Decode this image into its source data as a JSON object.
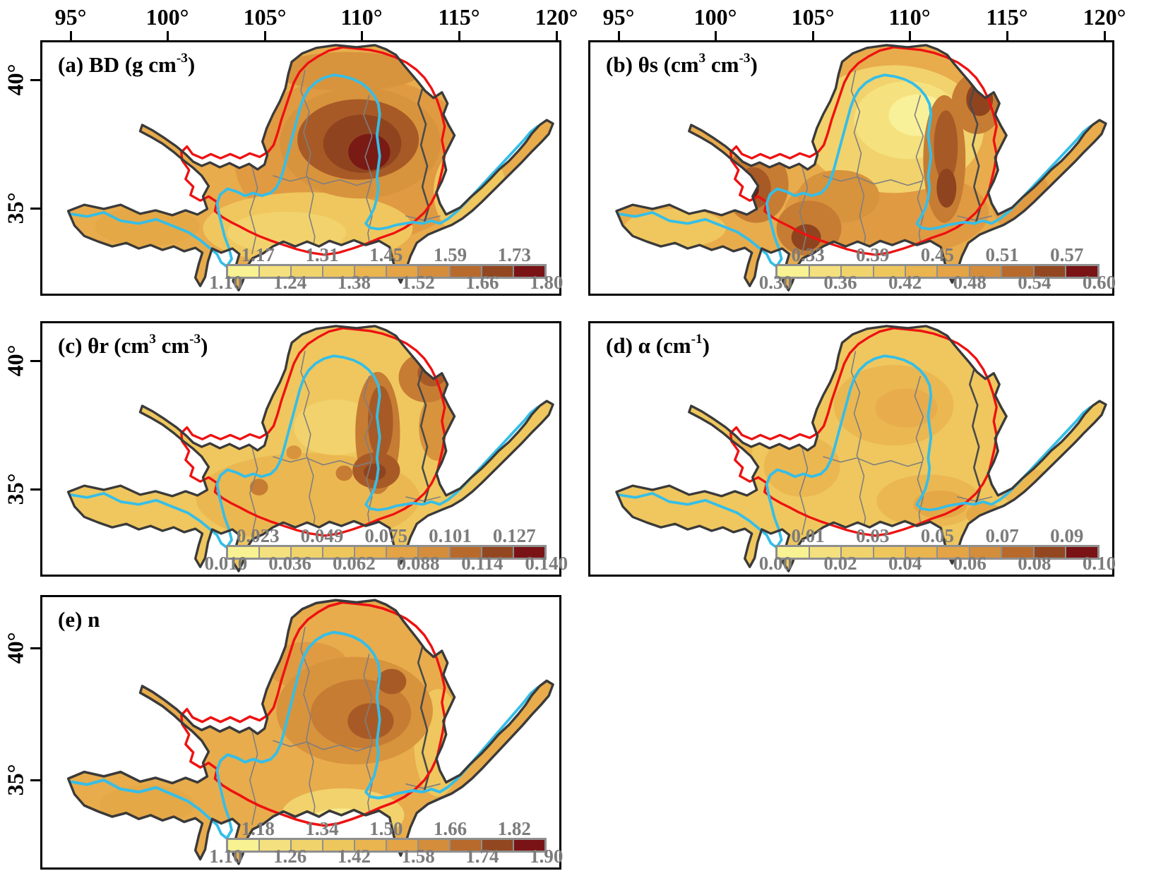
{
  "figure": {
    "description": "Spatial maps of soil hydraulic parameters over the Yellow River basin",
    "top_axis": {
      "ticks": [
        "95°",
        "100°",
        "105°",
        "110°",
        "115°",
        "120°"
      ]
    },
    "left_axis": {
      "ticks": [
        "40°",
        "35°"
      ]
    },
    "colors": {
      "colorbar_segments": [
        "#F8F292",
        "#F4E07E",
        "#F1D36C",
        "#EEC75C",
        "#EAB44E",
        "#E4A344",
        "#D48D3A",
        "#B76A2C",
        "#934720",
        "#7A1315"
      ],
      "basin_outline": "#3A3A3A",
      "subregion_boundary_red": "#EE1111",
      "river_cyan": "#35BEE8",
      "province_gray": "#7F7F7F",
      "dark_province": "#4A4A4A",
      "legend_label_gray": "#7C7C7C"
    },
    "panels": [
      {
        "id": "a",
        "title_runs": [
          [
            "t",
            "(a) BD (g cm"
          ],
          [
            "sup",
            "-3"
          ],
          [
            "t",
            ")"
          ]
        ],
        "legend": {
          "top": [
            "1.17",
            "1.31",
            "1.45",
            "1.59",
            "1.73"
          ],
          "bottom": [
            "1.10",
            "1.24",
            "1.38",
            "1.52",
            "1.66",
            "1.80"
          ]
        },
        "shading": {
          "base": "#E8AC4C",
          "blobs": [
            [
              450,
              170,
              175,
              120,
              "#E09A42"
            ],
            [
              380,
              268,
              150,
              52,
              "#EFC75E"
            ],
            [
              350,
              274,
              85,
              30,
              "#F2D26C"
            ],
            [
              612,
              215,
              52,
              68,
              "#EFC75E"
            ],
            [
              438,
              42,
              105,
              28,
              "#D8933D"
            ],
            [
              150,
              265,
              75,
              28,
              "#E5A846"
            ],
            [
              455,
              145,
              115,
              80,
              "#D8933D"
            ],
            [
              452,
              140,
              87,
              58,
              "#A85A26"
            ],
            [
              458,
              146,
              56,
              42,
              "#8F441F"
            ],
            [
              468,
              158,
              30,
              26,
              "#7A1A14"
            ]
          ]
        }
      },
      {
        "id": "b",
        "title_runs": [
          [
            "t",
            "(b) θs (cm"
          ],
          [
            "sup",
            "3"
          ],
          [
            "t",
            " cm"
          ],
          [
            "sup",
            "-3"
          ],
          [
            "t",
            ")"
          ]
        ],
        "legend": {
          "top": [
            "0.33",
            "0.39",
            "0.45",
            "0.51",
            "0.57"
          ],
          "bottom": [
            "0.30",
            "0.36",
            "0.42",
            "0.48",
            "0.54",
            "0.60"
          ]
        },
        "shading": {
          "base": "#E8AC4C",
          "blobs": [
            [
              420,
              245,
              145,
              65,
              "#E09A42"
            ],
            [
              120,
              268,
              72,
              28,
              "#EFC75E"
            ],
            [
              430,
              125,
              128,
              92,
              "#F2D26C"
            ],
            [
              450,
              112,
              76,
              56,
              "#F5E27F"
            ],
            [
              465,
              105,
              42,
              30,
              "#F9F09A"
            ],
            [
              352,
              222,
              58,
              38,
              "#D8933D"
            ],
            [
              235,
              205,
              46,
              55,
              "#C67C33"
            ],
            [
              231,
              210,
              25,
              30,
              "#A85A26"
            ],
            [
              229,
              212,
              10,
              12,
              "#7A1A14"
            ],
            [
              310,
              268,
              46,
              40,
              "#C67C33"
            ],
            [
              306,
              281,
              21,
              19,
              "#8F441F"
            ],
            [
              502,
              168,
              30,
              92,
              "#C67C33"
            ],
            [
              504,
              150,
              17,
              52,
              "#A85A26"
            ],
            [
              505,
              210,
              14,
              28,
              "#8F441F"
            ],
            [
              548,
              88,
              36,
              44,
              "#C67C33"
            ],
            [
              552,
              82,
              19,
              24,
              "#8F441F"
            ],
            [
              610,
              225,
              42,
              50,
              "#E09A42"
            ]
          ]
        }
      },
      {
        "id": "c",
        "title_runs": [
          [
            "t",
            "(c) θr (cm"
          ],
          [
            "sup",
            "3"
          ],
          [
            "t",
            " cm"
          ],
          [
            "sup",
            "-3"
          ],
          [
            "t",
            ")"
          ]
        ],
        "legend": {
          "top": [
            "0.023",
            "0.049",
            "0.075",
            "0.101",
            "0.127"
          ],
          "bottom": [
            "0.010",
            "0.036",
            "0.062",
            "0.088",
            "0.114",
            "0.140"
          ]
        },
        "shading": {
          "base": "#EFC75E",
          "blobs": [
            [
              380,
              252,
              160,
              65,
              "#EBB751"
            ],
            [
              420,
              150,
              60,
              40,
              "#F2D26C"
            ],
            [
              565,
              150,
              26,
              48,
              "#D8933D"
            ],
            [
              480,
              158,
              32,
              88,
              "#C67C33"
            ],
            [
              484,
              142,
              18,
              52,
              "#A85A26"
            ],
            [
              478,
              212,
              34,
              26,
              "#A85A26"
            ],
            [
              476,
              214,
              16,
              12,
              "#8F441F"
            ],
            [
              550,
              78,
              40,
              36,
              "#C67C33"
            ],
            [
              558,
              72,
              21,
              19,
              "#A85A26"
            ],
            [
              215,
              208,
              17,
              16,
              "#A85A26"
            ],
            [
              212,
              206,
              8,
              8,
              "#8F441F"
            ],
            [
              310,
              236,
              13,
              12,
              "#C67C33"
            ],
            [
              360,
              186,
              11,
              10,
              "#D8933D"
            ],
            [
              432,
              216,
              12,
              11,
              "#C67C33"
            ]
          ]
        }
      },
      {
        "id": "d",
        "title_runs": [
          [
            "t",
            "(d) α (cm"
          ],
          [
            "sup",
            "-1"
          ],
          [
            "t",
            ")"
          ]
        ],
        "legend": {
          "top": [
            "0.01",
            "0.03",
            "0.05",
            "0.07",
            "0.09"
          ],
          "bottom": [
            "0.00",
            "0.02",
            "0.04",
            "0.06",
            "0.08",
            "0.10"
          ]
        },
        "shading": {
          "base": "#EFC75E",
          "blobs": [
            [
              430,
              118,
              85,
              58,
              "#EBB751"
            ],
            [
              448,
              122,
              44,
              28,
              "#E8AC4C"
            ],
            [
              300,
              206,
              54,
              44,
              "#EBB751"
            ],
            [
              480,
              256,
              74,
              38,
              "#EBB751"
            ],
            [
              496,
              261,
              38,
              20,
              "#E5A846"
            ],
            [
              622,
              236,
              44,
              26,
              "#EBB751"
            ],
            [
              560,
              276,
              27,
              17,
              "#E5A846"
            ],
            [
              200,
              182,
              30,
              24,
              "#EBB751"
            ]
          ]
        }
      },
      {
        "id": "e",
        "title_runs": [
          [
            "t",
            "(e) n"
          ]
        ],
        "legend": {
          "top": [
            "1.18",
            "1.34",
            "1.50",
            "1.66",
            "1.82"
          ],
          "bottom": [
            "1.10",
            "1.26",
            "1.42",
            "1.58",
            "1.74",
            "1.90"
          ]
        },
        "shading": {
          "base": "#E8AC4C",
          "blobs": [
            [
              150,
              278,
              68,
              26,
              "#E5A846"
            ],
            [
              566,
              195,
              34,
              72,
              "#EFC75E"
            ],
            [
              430,
              292,
              88,
              36,
              "#F2D26C"
            ],
            [
              428,
              301,
              48,
              18,
              "#F7EA8F"
            ],
            [
              380,
              92,
              58,
              32,
              "#E09A42"
            ],
            [
              447,
              152,
              112,
              72,
              "#D8933D"
            ],
            [
              456,
              156,
              72,
              46,
              "#C67C33"
            ],
            [
              470,
              166,
              33,
              24,
              "#A85A26"
            ],
            [
              500,
              113,
              21,
              17,
              "#A85A26"
            ]
          ]
        }
      }
    ]
  },
  "chart_data": {
    "type": "heatmap",
    "note": "Five choropleth/contour maps of soil hydraulic parameters over the Yellow River basin; shared lon/lat axes; 10-class sequential yellow-to-dark-brown colorbars.",
    "lon_ticks_deg": [
      95,
      100,
      105,
      110,
      115,
      120
    ],
    "lat_ticks_deg": [
      40,
      35
    ],
    "maps": [
      {
        "panel": "a",
        "variable": "BD",
        "unit": "g cm^-3",
        "scale_min": 1.1,
        "scale_max": 1.8,
        "class_breaks": [
          1.1,
          1.17,
          1.24,
          1.31,
          1.38,
          1.45,
          1.52,
          1.59,
          1.66,
          1.73,
          1.8
        ]
      },
      {
        "panel": "b",
        "variable": "θs",
        "unit": "cm^3 cm^-3",
        "scale_min": 0.3,
        "scale_max": 0.6,
        "class_breaks": [
          0.3,
          0.33,
          0.36,
          0.39,
          0.42,
          0.45,
          0.48,
          0.51,
          0.54,
          0.57,
          0.6
        ]
      },
      {
        "panel": "c",
        "variable": "θr",
        "unit": "cm^3 cm^-3",
        "scale_min": 0.01,
        "scale_max": 0.14,
        "class_breaks": [
          0.01,
          0.023,
          0.036,
          0.049,
          0.062,
          0.075,
          0.088,
          0.101,
          0.114,
          0.127,
          0.14
        ]
      },
      {
        "panel": "d",
        "variable": "α",
        "unit": "cm^-1",
        "scale_min": 0.0,
        "scale_max": 0.1,
        "class_breaks": [
          0.0,
          0.01,
          0.02,
          0.03,
          0.04,
          0.05,
          0.06,
          0.07,
          0.08,
          0.09,
          0.1
        ]
      },
      {
        "panel": "e",
        "variable": "n",
        "unit": "",
        "scale_min": 1.1,
        "scale_max": 1.9,
        "class_breaks": [
          1.1,
          1.18,
          1.26,
          1.34,
          1.42,
          1.5,
          1.58,
          1.66,
          1.74,
          1.82,
          1.9
        ]
      }
    ]
  }
}
